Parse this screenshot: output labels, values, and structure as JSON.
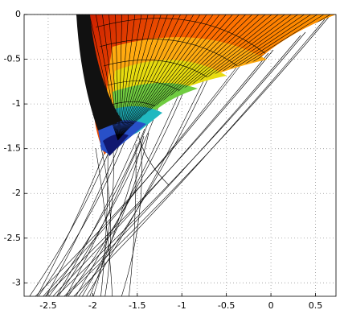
{
  "chart_data": {
    "type": "surface",
    "xlim": [
      -2.77,
      0.73
    ],
    "ylim": [
      -3.15,
      0
    ],
    "xticks": [
      -2.5,
      -2,
      -1.5,
      -1,
      -0.5,
      0,
      0.5
    ],
    "yticks": [
      0,
      -0.5,
      -1,
      -1.5,
      -2,
      -2.5,
      -3
    ],
    "grid": true
  }
}
